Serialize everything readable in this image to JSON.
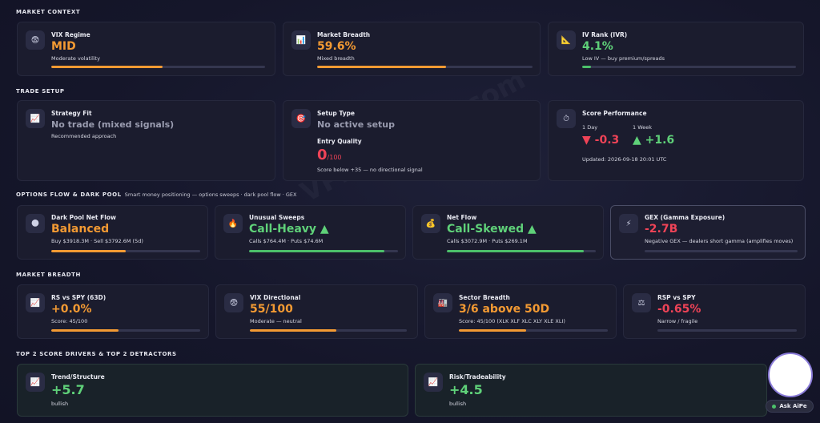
{
  "sections": {
    "market_context": "MARKET CONTEXT",
    "trade_setup": "TRADE SETUP",
    "options_flow": "OPTIONS FLOW & DARK POOL",
    "options_flow_sub": "Smart money positioning — options sweeps · dark pool flow · GEX",
    "market_breadth": "MARKET BREADTH",
    "drivers": "TOP 2 SCORE DRIVERS & TOP 2 DETRACTORS"
  },
  "market_context": [
    {
      "label": "VIX Regime",
      "value": "MID",
      "desc": "Moderate volatility",
      "icon": "scared-face-icon",
      "progress": 0.52,
      "color": "#f39a33"
    },
    {
      "label": "Market Breadth",
      "value": "59.6%",
      "desc": "Mixed breadth",
      "icon": "bar-chart-icon",
      "progress": 0.6,
      "color": "#f39a33"
    },
    {
      "label": "IV Rank (IVR)",
      "value": "4.1%",
      "desc": "Low IV — buy premium/spreads",
      "icon": "triangle-ruler-icon",
      "progress": 0.041,
      "color": "#5fd179"
    }
  ],
  "trade_setup": {
    "strategy": {
      "label": "Strategy Fit",
      "value": "No trade (mixed signals)",
      "desc": "Recommended approach",
      "icon": "chart-up-icon"
    },
    "setup": {
      "label": "Setup Type",
      "value": "No active setup",
      "icon": "target-icon",
      "entry_label": "Entry Quality",
      "entry_value": "0",
      "entry_max": "/100",
      "entry_desc": "Score below +35 — no directional signal"
    },
    "score": {
      "label": "Score Performance",
      "icon": "timer-icon",
      "day_label": "1 Day",
      "day_value": "▼ -0.3",
      "week_label": "1 Week",
      "week_value": "▲ +1.6",
      "updated": "Updated: 2026-09-18 20:01 UTC"
    }
  },
  "options_flow": [
    {
      "label": "Dark Pool Net Flow",
      "value": "Balanced",
      "desc": "Buy $3918.3M · Sell $3792.6M (5d)",
      "icon": "globe-icon",
      "progress": 0.5,
      "color": "#f39a33"
    },
    {
      "label": "Unusual Sweeps",
      "value": "Call-Heavy ▲",
      "desc": "Calls $764.4M · Puts $74.6M",
      "icon": "fire-icon",
      "progress": 0.91,
      "color": "#5fd179"
    },
    {
      "label": "Net Flow",
      "value": "Call-Skewed ▲",
      "desc": "Calls $3072.9M · Puts $269.1M",
      "icon": "money-bag-icon",
      "progress": 0.92,
      "color": "#5fd179"
    },
    {
      "label": "GEX (Gamma Exposure)",
      "value": "-2.7B",
      "desc": "Negative GEX — dealers short gamma (amplifies moves)",
      "icon": "lightning-icon",
      "progress": 0,
      "color": "#ef4357"
    }
  ],
  "market_breadth": [
    {
      "label": "RS vs SPY (63D)",
      "value": "+0.0%",
      "desc": "Score: 45/100",
      "icon": "chart-up-icon",
      "progress": 0.45,
      "color": "#f39a33"
    },
    {
      "label": "VIX Directional",
      "value": "55/100",
      "desc": "Moderate — neutral",
      "icon": "scared-face-icon",
      "progress": 0.55,
      "color": "#f39a33"
    },
    {
      "label": "Sector Breadth",
      "value": "3/6 above 50D",
      "desc": "Score: 45/100 (XLK XLF XLC XLY XLE XLI)",
      "icon": "buildings-icon",
      "progress": 0.45,
      "color": "#f39a33"
    },
    {
      "label": "RSP vs SPY",
      "value": "-0.65%",
      "desc": "Narrow / fragile",
      "icon": "scales-icon",
      "progress": 0,
      "color": "#ef4357"
    }
  ],
  "drivers": [
    {
      "label": "Trend/Structure",
      "value": "+5.7",
      "desc": "bullish",
      "icon": "chart-up-icon"
    },
    {
      "label": "Risk/Tradeability",
      "value": "+4.5",
      "desc": "bullish",
      "icon": "chart-up-icon"
    }
  ],
  "watermark": "VPZTrading.com",
  "ask_label": "Ask AiPe"
}
